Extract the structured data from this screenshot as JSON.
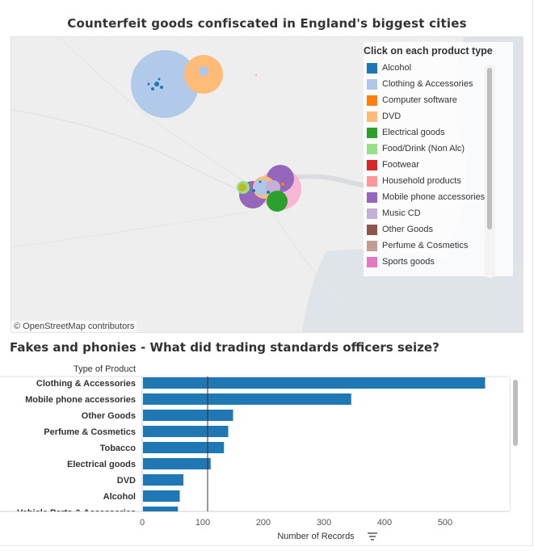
{
  "map": {
    "title": "Counterfeit goods confiscated in England's biggest cities",
    "attribution": "© OpenStreetMap contributors",
    "legend_title": "Click on each product type",
    "legend": [
      {
        "label": "Alcohol",
        "color": "#1f77b4"
      },
      {
        "label": "Clothing & Accessories",
        "color": "#aec7e8"
      },
      {
        "label": "Computer software",
        "color": "#ff7f0e"
      },
      {
        "label": "DVD",
        "color": "#ffbb78"
      },
      {
        "label": "Electrical goods",
        "color": "#2ca02c"
      },
      {
        "label": "Food/Drink (Non Alc)",
        "color": "#98df8a"
      },
      {
        "label": "Footwear",
        "color": "#d62728"
      },
      {
        "label": "Household products",
        "color": "#ff9896"
      },
      {
        "label": "Mobile phone accessories",
        "color": "#9467bd"
      },
      {
        "label": "Music CD",
        "color": "#c5b0d5"
      },
      {
        "label": "Other Goods",
        "color": "#8c564b"
      },
      {
        "label": "Perfume & Cosmetics",
        "color": "#c49c94"
      },
      {
        "label": "Sports goods",
        "color": "#e377c2"
      }
    ]
  },
  "chart_data": {
    "type": "bar",
    "orientation": "horizontal",
    "title": "Fakes and phonies - What did trading standards officers seize?",
    "category_header": "Type of Product",
    "xlabel": "Number of Records",
    "categories": [
      "Clothing & Accessories",
      "Mobile phone accessories",
      "Other Goods",
      "Perfume & Cosmetics",
      "Tobacco",
      "Electrical goods",
      "DVD",
      "Alcohol",
      "Vehicle Parts & Accessories"
    ],
    "values": [
      566,
      345,
      150,
      142,
      135,
      113,
      68,
      62,
      59
    ],
    "xlim": [
      0,
      600
    ],
    "xticks": [
      0,
      100,
      200,
      300,
      400,
      500
    ],
    "reference_line": 108,
    "bar_color": "#1f77b4"
  }
}
